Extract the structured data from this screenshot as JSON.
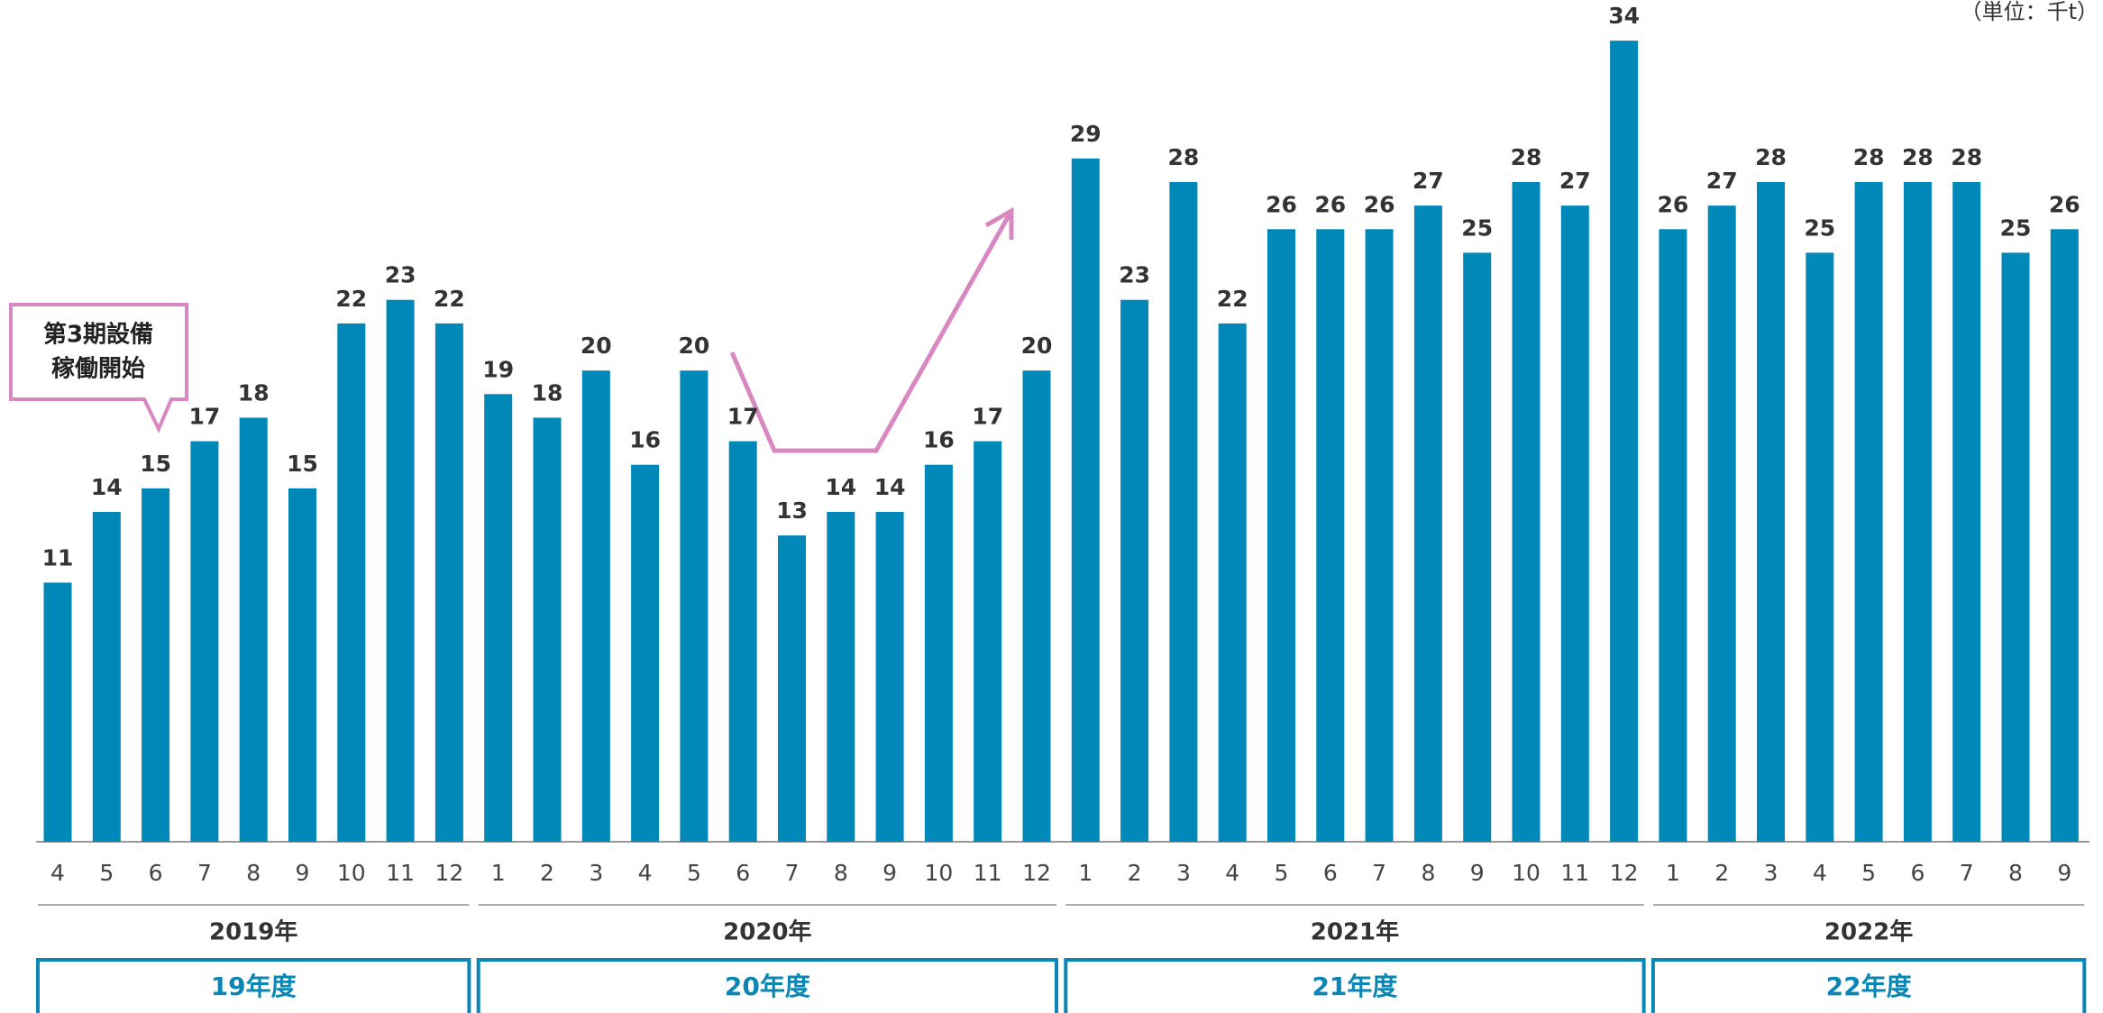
{
  "chart_data": {
    "type": "bar",
    "color": "#0088b8",
    "ylim": [
      0,
      35
    ],
    "unit": "（単位：千t）",
    "annotation": [
      "第3期設備",
      "稼働開始"
    ],
    "groups": [
      {
        "label": "2019年",
        "fiscal_year": "19年度",
        "categories": [
          "4",
          "5",
          "6",
          "7",
          "8",
          "9",
          "10",
          "11",
          "12"
        ],
        "values": [
          11,
          14,
          15,
          17,
          18,
          15,
          22,
          23,
          22
        ]
      },
      {
        "label": "2020年",
        "fiscal_year": "20年度",
        "categories": [
          "1",
          "2",
          "3",
          "4",
          "5",
          "6",
          "7",
          "8",
          "9",
          "10",
          "11",
          "12"
        ],
        "values": [
          19,
          18,
          20,
          16,
          20,
          17,
          13,
          14,
          14,
          16,
          17,
          20
        ]
      },
      {
        "label": "2021年",
        "fiscal_year": "21年度",
        "categories": [
          "1",
          "2",
          "3",
          "4",
          "5",
          "6",
          "7",
          "8",
          "9",
          "10",
          "11",
          "12"
        ],
        "values": [
          29,
          23,
          28,
          22,
          26,
          26,
          26,
          27,
          25,
          28,
          27,
          34
        ]
      },
      {
        "label": "2022年",
        "fiscal_year": "22年度",
        "categories": [
          "1",
          "2",
          "3",
          "4",
          "5",
          "6",
          "7",
          "8",
          "9"
        ],
        "values": [
          26,
          27,
          28,
          25,
          28,
          28,
          28,
          25,
          26
        ]
      }
    ]
  }
}
